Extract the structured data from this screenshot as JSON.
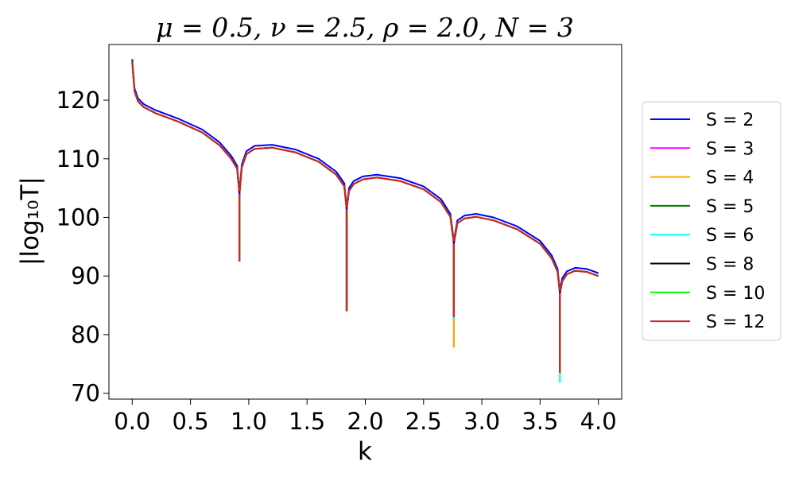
{
  "chart_data": {
    "type": "line",
    "title": "μ = 0.5, ν = 2.5, ρ = 2.0, N = 3",
    "xlabel": "k",
    "ylabel": "|log₁₀T|",
    "xlim": [
      -0.2,
      4.2
    ],
    "ylim": [
      69,
      129.5
    ],
    "x_ticks": [
      0.0,
      0.5,
      1.0,
      1.5,
      2.0,
      2.5,
      3.0,
      3.5,
      4.0
    ],
    "x_tick_labels": [
      "0.0",
      "0.5",
      "1.0",
      "1.5",
      "2.0",
      "2.5",
      "3.0",
      "3.5",
      "4.0"
    ],
    "y_ticks": [
      70,
      80,
      90,
      100,
      110,
      120
    ],
    "y_tick_labels": [
      "70",
      "80",
      "90",
      "100",
      "110",
      "120"
    ],
    "grid": false,
    "legend_position": "outside-right",
    "dips": [
      {
        "k": 0.92,
        "min": {
          "S = 2": 92.5,
          "S = 3": 92.5,
          "S = 4": 92.5,
          "S = 5": 92.5,
          "S = 6": 92.5,
          "S = 8": 92.5,
          "S = 10": 92.5,
          "S = 12": 92.5
        }
      },
      {
        "k": 1.84,
        "min": {
          "S = 2": 84.0,
          "S = 3": 84.0,
          "S = 4": 84.0,
          "S = 5": 84.0,
          "S = 6": 84.0,
          "S = 8": 84.0,
          "S = 10": 84.0,
          "S = 12": 84.0
        }
      },
      {
        "k": 2.76,
        "min": {
          "S = 2": 83.0,
          "S = 3": 83.0,
          "S = 4": 77.8,
          "S = 5": 83.0,
          "S = 6": 82.5,
          "S = 8": 83.0,
          "S = 10": 83.0,
          "S = 12": 83.0
        }
      },
      {
        "k": 3.67,
        "min": {
          "S = 2": 73.5,
          "S = 3": 73.5,
          "S = 4": 73.5,
          "S = 5": 73.5,
          "S = 6": 71.8,
          "S = 8": 73.5,
          "S = 10": 73.5,
          "S = 12": 73.5
        }
      }
    ],
    "series": [
      {
        "name": "S = 2",
        "color": "#0000ff",
        "x": [
          0.0,
          0.02,
          0.05,
          0.1,
          0.2,
          0.4,
          0.6,
          0.75,
          0.85,
          0.9,
          0.92,
          0.94,
          0.98,
          1.05,
          1.2,
          1.4,
          1.6,
          1.75,
          1.82,
          1.84,
          1.86,
          1.9,
          1.98,
          2.1,
          2.3,
          2.5,
          2.65,
          2.73,
          2.76,
          2.79,
          2.85,
          2.95,
          3.1,
          3.3,
          3.5,
          3.6,
          3.65,
          3.67,
          3.69,
          3.73,
          3.8,
          3.9,
          4.0
        ],
        "y": [
          127.0,
          122.0,
          120.3,
          119.3,
          118.3,
          116.8,
          115.0,
          112.8,
          110.5,
          108.8,
          104.5,
          109.0,
          111.3,
          112.2,
          112.4,
          111.6,
          110.0,
          107.8,
          105.8,
          101.8,
          105.0,
          106.2,
          107.0,
          107.3,
          106.7,
          105.3,
          103.1,
          100.6,
          96.0,
          99.5,
          100.3,
          100.6,
          100.0,
          98.5,
          96.0,
          93.5,
          91.2,
          87.5,
          89.6,
          90.8,
          91.4,
          91.2,
          90.5
        ]
      },
      {
        "name": "S = 3",
        "color": "#ff00ff",
        "x": [
          0.0,
          0.02,
          0.05,
          0.1,
          0.2,
          0.4,
          0.6,
          0.75,
          0.85,
          0.9,
          0.92,
          0.94,
          0.98,
          1.05,
          1.2,
          1.4,
          1.6,
          1.75,
          1.82,
          1.84,
          1.86,
          1.9,
          1.98,
          2.1,
          2.3,
          2.5,
          2.65,
          2.73,
          2.76,
          2.79,
          2.85,
          2.95,
          3.1,
          3.3,
          3.5,
          3.6,
          3.65,
          3.67,
          3.69,
          3.73,
          3.8,
          3.9,
          4.0
        ],
        "y": [
          126.5,
          121.5,
          119.8,
          118.8,
          117.8,
          116.3,
          114.5,
          112.3,
          110.0,
          108.3,
          104.0,
          108.5,
          110.8,
          111.7,
          111.9,
          111.1,
          109.5,
          107.3,
          105.3,
          101.3,
          104.5,
          105.7,
          106.5,
          106.8,
          106.2,
          104.8,
          102.6,
          100.1,
          95.5,
          99.0,
          99.8,
          100.1,
          99.5,
          98.0,
          95.5,
          93.0,
          90.7,
          87.0,
          89.1,
          90.3,
          90.9,
          90.7,
          90.0
        ]
      },
      {
        "name": "S = 4",
        "color": "#ffa500",
        "x": [
          0.0,
          0.02,
          0.05,
          0.1,
          0.2,
          0.4,
          0.6,
          0.75,
          0.85,
          0.9,
          0.92,
          0.94,
          0.98,
          1.05,
          1.2,
          1.4,
          1.6,
          1.75,
          1.82,
          1.84,
          1.86,
          1.9,
          1.98,
          2.1,
          2.3,
          2.5,
          2.65,
          2.73,
          2.76,
          2.79,
          2.85,
          2.95,
          3.1,
          3.3,
          3.5,
          3.6,
          3.65,
          3.67,
          3.69,
          3.73,
          3.8,
          3.9,
          4.0
        ],
        "y": [
          126.5,
          121.5,
          119.8,
          118.8,
          117.8,
          116.3,
          114.5,
          112.3,
          110.0,
          108.3,
          104.0,
          108.5,
          110.8,
          111.7,
          111.9,
          111.1,
          109.5,
          107.3,
          105.3,
          101.3,
          104.5,
          105.7,
          106.5,
          106.8,
          106.2,
          104.8,
          102.6,
          100.1,
          95.5,
          99.0,
          99.8,
          100.1,
          99.5,
          98.0,
          95.5,
          93.0,
          90.7,
          87.0,
          89.1,
          90.3,
          90.9,
          90.7,
          90.0
        ]
      },
      {
        "name": "S = 5",
        "color": "#008000",
        "x": [
          0.0,
          0.02,
          0.05,
          0.1,
          0.2,
          0.4,
          0.6,
          0.75,
          0.85,
          0.9,
          0.92,
          0.94,
          0.98,
          1.05,
          1.2,
          1.4,
          1.6,
          1.75,
          1.82,
          1.84,
          1.86,
          1.9,
          1.98,
          2.1,
          2.3,
          2.5,
          2.65,
          2.73,
          2.76,
          2.79,
          2.85,
          2.95,
          3.1,
          3.3,
          3.5,
          3.6,
          3.65,
          3.67,
          3.69,
          3.73,
          3.8,
          3.9,
          4.0
        ],
        "y": [
          126.5,
          121.5,
          119.8,
          118.8,
          117.8,
          116.3,
          114.5,
          112.3,
          110.0,
          108.3,
          104.0,
          108.5,
          110.8,
          111.7,
          111.9,
          111.1,
          109.5,
          107.3,
          105.3,
          101.3,
          104.5,
          105.7,
          106.5,
          106.8,
          106.2,
          104.8,
          102.6,
          100.1,
          95.5,
          99.0,
          99.8,
          100.1,
          99.5,
          98.0,
          95.5,
          93.0,
          90.7,
          87.0,
          89.1,
          90.3,
          90.9,
          90.7,
          90.0
        ]
      },
      {
        "name": "S = 6",
        "color": "#00ffff",
        "x": [
          0.0,
          0.02,
          0.05,
          0.1,
          0.2,
          0.4,
          0.6,
          0.75,
          0.85,
          0.9,
          0.92,
          0.94,
          0.98,
          1.05,
          1.2,
          1.4,
          1.6,
          1.75,
          1.82,
          1.84,
          1.86,
          1.9,
          1.98,
          2.1,
          2.3,
          2.5,
          2.65,
          2.73,
          2.76,
          2.79,
          2.85,
          2.95,
          3.1,
          3.3,
          3.5,
          3.6,
          3.65,
          3.67,
          3.69,
          3.73,
          3.8,
          3.9,
          4.0
        ],
        "y": [
          126.5,
          121.5,
          119.8,
          118.8,
          117.8,
          116.3,
          114.5,
          112.3,
          110.0,
          108.3,
          104.0,
          108.5,
          110.8,
          111.7,
          111.9,
          111.1,
          109.5,
          107.3,
          105.3,
          101.3,
          104.5,
          105.7,
          106.5,
          106.8,
          106.2,
          104.8,
          102.6,
          100.1,
          95.5,
          99.0,
          99.8,
          100.1,
          99.5,
          98.0,
          95.5,
          93.0,
          90.7,
          87.0,
          89.1,
          90.3,
          90.9,
          90.7,
          90.0
        ]
      },
      {
        "name": "S = 8",
        "color": "#000000",
        "x": [
          0.0,
          0.02,
          0.05,
          0.1,
          0.2,
          0.4,
          0.6,
          0.75,
          0.85,
          0.9,
          0.92,
          0.94,
          0.98,
          1.05,
          1.2,
          1.4,
          1.6,
          1.75,
          1.82,
          1.84,
          1.86,
          1.9,
          1.98,
          2.1,
          2.3,
          2.5,
          2.65,
          2.73,
          2.76,
          2.79,
          2.85,
          2.95,
          3.1,
          3.3,
          3.5,
          3.6,
          3.65,
          3.67,
          3.69,
          3.73,
          3.8,
          3.9,
          4.0
        ],
        "y": [
          126.5,
          121.5,
          119.8,
          118.8,
          117.8,
          116.3,
          114.5,
          112.3,
          110.0,
          108.3,
          104.0,
          108.5,
          110.8,
          111.7,
          111.9,
          111.1,
          109.5,
          107.3,
          105.3,
          101.3,
          104.5,
          105.7,
          106.5,
          106.8,
          106.2,
          104.8,
          102.6,
          100.1,
          95.5,
          99.0,
          99.8,
          100.1,
          99.5,
          98.0,
          95.5,
          93.0,
          90.7,
          87.0,
          89.1,
          90.3,
          90.9,
          90.7,
          90.0
        ]
      },
      {
        "name": "S = 10",
        "color": "#00ff00",
        "x": [
          0.0,
          0.02,
          0.05,
          0.1,
          0.2,
          0.4,
          0.6,
          0.75,
          0.85,
          0.9,
          0.92,
          0.94,
          0.98,
          1.05,
          1.2,
          1.4,
          1.6,
          1.75,
          1.82,
          1.84,
          1.86,
          1.9,
          1.98,
          2.1,
          2.3,
          2.5,
          2.65,
          2.73,
          2.76,
          2.79,
          2.85,
          2.95,
          3.1,
          3.3,
          3.5,
          3.6,
          3.65,
          3.67,
          3.69,
          3.73,
          3.8,
          3.9,
          4.0
        ],
        "y": [
          126.5,
          121.5,
          119.8,
          118.8,
          117.8,
          116.3,
          114.5,
          112.3,
          110.0,
          108.3,
          104.0,
          108.5,
          110.8,
          111.7,
          111.9,
          111.1,
          109.5,
          107.3,
          105.3,
          101.3,
          104.5,
          105.7,
          106.5,
          106.8,
          106.2,
          104.8,
          102.6,
          100.1,
          95.5,
          99.0,
          99.8,
          100.1,
          99.5,
          98.0,
          95.5,
          93.0,
          90.7,
          87.0,
          89.1,
          90.3,
          90.9,
          90.7,
          90.0
        ]
      },
      {
        "name": "S = 12",
        "color": "#d62020",
        "x": [
          0.0,
          0.02,
          0.05,
          0.1,
          0.2,
          0.4,
          0.6,
          0.75,
          0.85,
          0.9,
          0.92,
          0.94,
          0.98,
          1.05,
          1.2,
          1.4,
          1.6,
          1.75,
          1.82,
          1.84,
          1.86,
          1.9,
          1.98,
          2.1,
          2.3,
          2.5,
          2.65,
          2.73,
          2.76,
          2.79,
          2.85,
          2.95,
          3.1,
          3.3,
          3.5,
          3.6,
          3.65,
          3.67,
          3.69,
          3.73,
          3.8,
          3.9,
          4.0
        ],
        "y": [
          126.5,
          121.5,
          119.8,
          118.8,
          117.8,
          116.3,
          114.5,
          112.3,
          110.0,
          108.3,
          104.0,
          108.5,
          110.8,
          111.7,
          111.9,
          111.1,
          109.5,
          107.3,
          105.3,
          101.3,
          104.5,
          105.7,
          106.5,
          106.8,
          106.2,
          104.8,
          102.6,
          100.1,
          95.5,
          99.0,
          99.8,
          100.1,
          99.5,
          98.0,
          95.5,
          93.0,
          90.7,
          87.0,
          89.1,
          90.3,
          90.9,
          90.7,
          90.0
        ]
      }
    ]
  }
}
